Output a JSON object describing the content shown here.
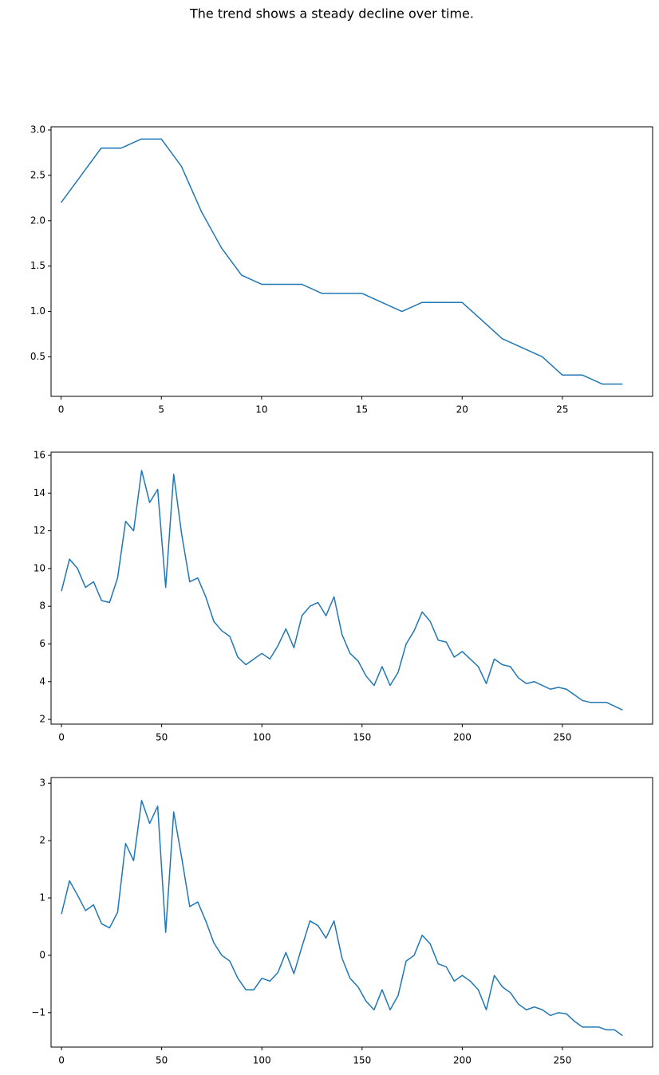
{
  "title": "The trend shows a steady decline over time.",
  "chart_data": [
    {
      "type": "line",
      "color": "#1f77b4",
      "x": [
        0,
        1,
        2,
        3,
        4,
        5,
        6,
        7,
        8,
        9,
        10,
        11,
        12,
        13,
        14,
        15,
        16,
        17,
        18,
        19,
        20,
        21,
        22,
        23,
        24,
        25,
        26,
        27,
        28
      ],
      "values": [
        2.2,
        2.5,
        2.8,
        2.8,
        2.9,
        2.9,
        2.6,
        2.1,
        1.7,
        1.4,
        1.3,
        1.3,
        1.3,
        1.2,
        1.2,
        1.2,
        1.1,
        1.0,
        1.1,
        1.1,
        1.1,
        0.9,
        0.7,
        0.6,
        0.5,
        0.3,
        0.3,
        0.2,
        0.2
      ],
      "xlim": [
        -0.5,
        29.5
      ],
      "xticks": [
        0,
        5,
        10,
        15,
        20,
        25
      ],
      "ylim": [
        0.065,
        3.035
      ],
      "yticks": [
        0.5,
        {
          "value": 1,
          "label": "1.0"
        },
        1.5,
        {
          "value": 2,
          "label": "2.0"
        },
        2.5,
        {
          "value": 3,
          "label": "3.0"
        }
      ]
    },
    {
      "type": "line",
      "color": "#1f77b4",
      "x": [
        0,
        4,
        8,
        12,
        16,
        20,
        24,
        28,
        32,
        36,
        40,
        44,
        48,
        52,
        56,
        60,
        64,
        68,
        72,
        76,
        80,
        84,
        88,
        92,
        96,
        100,
        104,
        108,
        112,
        116,
        120,
        124,
        128,
        132,
        136,
        140,
        144,
        148,
        152,
        156,
        160,
        164,
        168,
        172,
        176,
        180,
        184,
        188,
        192,
        196,
        200,
        204,
        208,
        212,
        216,
        220,
        224,
        228,
        232,
        236,
        240,
        244,
        248,
        252,
        256,
        260,
        264,
        268,
        272,
        276,
        280
      ],
      "values": [
        8.8,
        10.5,
        10.0,
        9.0,
        9.3,
        8.3,
        8.2,
        9.5,
        12.5,
        12.0,
        15.2,
        13.5,
        14.2,
        9.0,
        15.0,
        11.8,
        9.3,
        9.5,
        8.5,
        7.2,
        6.7,
        6.4,
        5.3,
        4.9,
        5.2,
        5.5,
        5.2,
        5.9,
        6.8,
        5.8,
        7.5,
        8.0,
        8.2,
        7.5,
        8.5,
        6.5,
        5.5,
        5.1,
        4.3,
        3.8,
        4.8,
        3.8,
        4.5,
        6.0,
        6.7,
        7.7,
        7.2,
        6.2,
        6.1,
        5.3,
        5.6,
        5.2,
        4.8,
        3.9,
        5.2,
        4.9,
        4.8,
        4.2,
        3.9,
        4.0,
        3.8,
        3.6,
        3.7,
        3.6,
        3.3,
        3.0,
        2.9,
        2.9,
        2.9,
        2.7,
        2.5
      ],
      "xlim": [
        -5.2,
        295
      ],
      "xticks": [
        0,
        50,
        100,
        150,
        200,
        250
      ],
      "ylim": [
        1.75,
        16.17
      ],
      "yticks": [
        2,
        4,
        6,
        8,
        10,
        12,
        14,
        16
      ]
    },
    {
      "type": "line",
      "color": "#1f77b4",
      "x": [
        0,
        4,
        8,
        12,
        16,
        20,
        24,
        28,
        32,
        36,
        40,
        44,
        48,
        52,
        56,
        60,
        64,
        68,
        72,
        76,
        80,
        84,
        88,
        92,
        96,
        100,
        104,
        108,
        112,
        116,
        120,
        124,
        128,
        132,
        136,
        140,
        144,
        148,
        152,
        156,
        160,
        164,
        168,
        172,
        176,
        180,
        184,
        188,
        192,
        196,
        200,
        204,
        208,
        212,
        216,
        220,
        224,
        228,
        232,
        236,
        240,
        244,
        248,
        252,
        256,
        260,
        264,
        268,
        272,
        276,
        280
      ],
      "values": [
        0.72,
        1.3,
        1.05,
        0.78,
        0.88,
        0.55,
        0.48,
        0.75,
        1.95,
        1.65,
        2.7,
        2.3,
        2.6,
        0.4,
        2.5,
        1.7,
        0.85,
        0.93,
        0.6,
        0.22,
        0.0,
        -0.1,
        -0.4,
        -0.6,
        -0.6,
        -0.4,
        -0.45,
        -0.3,
        0.05,
        -0.32,
        0.15,
        0.6,
        0.52,
        0.3,
        0.6,
        -0.05,
        -0.4,
        -0.55,
        -0.8,
        -0.95,
        -0.6,
        -0.95,
        -0.7,
        -0.1,
        0.0,
        0.35,
        0.2,
        -0.15,
        -0.2,
        -0.45,
        -0.35,
        -0.45,
        -0.6,
        -0.95,
        -0.35,
        -0.55,
        -0.65,
        -0.85,
        -0.95,
        -0.9,
        -0.95,
        -1.05,
        -1.0,
        -1.02,
        -1.15,
        -1.25,
        -1.25,
        -1.25,
        -1.3,
        -1.3,
        -1.4
      ],
      "xlim": [
        -5.2,
        295
      ],
      "xticks": [
        0,
        50,
        100,
        150,
        200,
        250
      ],
      "ylim": [
        -1.6,
        3.1
      ],
      "yticks": [
        {
          "value": -1,
          "label": "−1"
        },
        0,
        1,
        2,
        3
      ]
    }
  ]
}
